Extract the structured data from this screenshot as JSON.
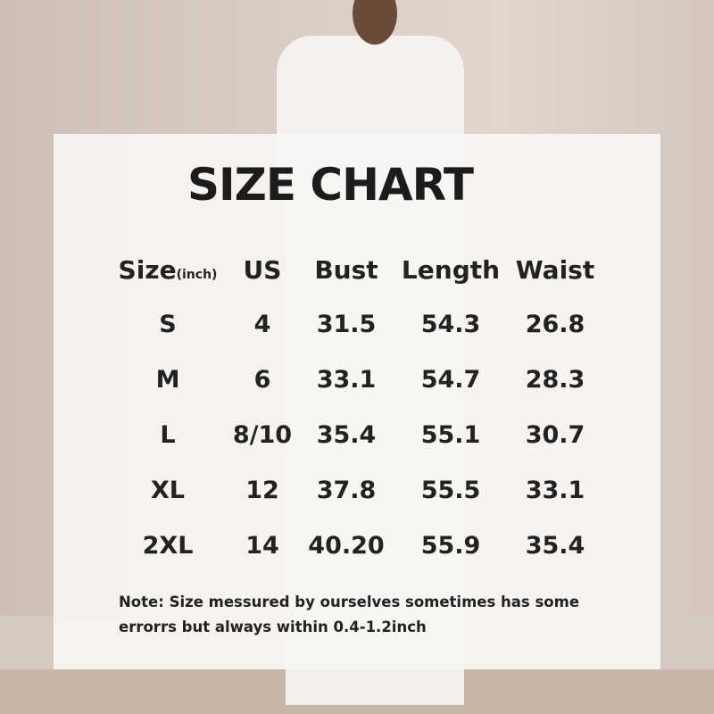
{
  "title": "SIZE CHART",
  "headers": {
    "size": "Size",
    "size_unit": "(inch)",
    "us": "US",
    "bust": "Bust",
    "length": "Length",
    "waist": "Waist"
  },
  "rows": [
    {
      "size": "S",
      "us": "4",
      "bust": "31.5",
      "length": "54.3",
      "waist": "26.8"
    },
    {
      "size": "M",
      "us": "6",
      "bust": "33.1",
      "length": "54.7",
      "waist": "28.3"
    },
    {
      "size": "L",
      "us": "8/10",
      "bust": "35.4",
      "length": "55.1",
      "waist": "30.7"
    },
    {
      "size": "XL",
      "us": "12",
      "bust": "37.8",
      "length": "55.5",
      "waist": "33.1"
    },
    {
      "size": "2XL",
      "us": "14",
      "bust": "40.20",
      "length": "55.9",
      "waist": "35.4"
    }
  ],
  "note": {
    "line1": "Note:  Size messured by ourselves sometimes has some",
    "line2": "errorrs but always within 0.4-1.2inch"
  }
}
